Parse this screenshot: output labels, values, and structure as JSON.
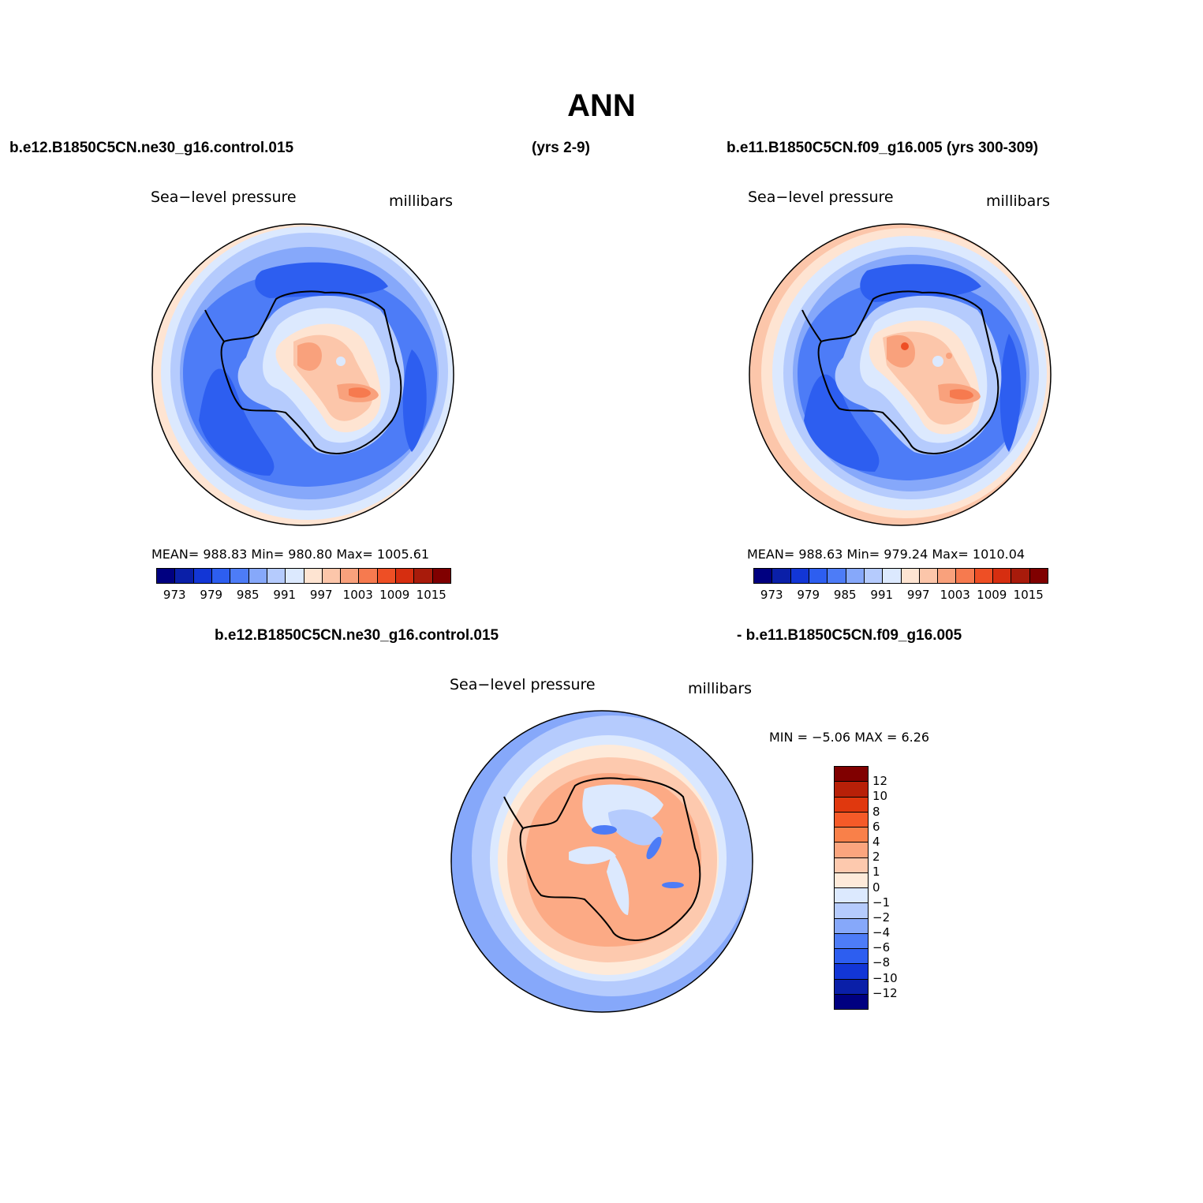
{
  "title": "ANN",
  "top_left_case": "b.e12.B1850C5CN.ne30_g16.control.015",
  "top_left_years": "(yrs 2-9)",
  "top_right_case": "b.e11.B1850C5CN.f09_g16.005 (yrs 300-309)",
  "diff_case_a": "b.e12.B1850C5CN.ne30_g16.control.015",
  "diff_case_b": "- b.e11.B1850C5CN.f09_g16.005",
  "panels": [
    {
      "variable": "Sea−level pressure",
      "units": "millibars",
      "stats": "MEAN=  988.83   Min=  980.80   Max=  1005.61"
    },
    {
      "variable": "Sea−level pressure",
      "units": "millibars",
      "stats": "MEAN=  988.63   Min=  979.24   Max=  1010.04"
    },
    {
      "variable": "Sea−level pressure",
      "units": "millibars",
      "stats": "MIN =   −5.06  MAX =    6.26"
    }
  ],
  "abs_colorbar": {
    "colors": [
      "#000080",
      "#0a1fa8",
      "#1236d6",
      "#2d5ef0",
      "#4d7cf7",
      "#86a8fa",
      "#b5cbfd",
      "#dce9fe",
      "#fee4d2",
      "#fcc6aa",
      "#f9a17c",
      "#f67a4f",
      "#ee4f25",
      "#d62e10",
      "#a81b0b",
      "#800000"
    ],
    "tick_labels": [
      "973",
      "979",
      "985",
      "991",
      "997",
      "1003",
      "1009",
      "1015"
    ]
  },
  "diff_colorbar": {
    "colors": [
      "#800000",
      "#b82008",
      "#e0380e",
      "#f55a28",
      "#f98049",
      "#fba57e",
      "#fdc9ae",
      "#feead9",
      "#dce9fe",
      "#b5cbfd",
      "#86a8fa",
      "#4d7cf7",
      "#2d5ef0",
      "#1236d6",
      "#0a1fa8",
      "#000080"
    ],
    "tick_labels": [
      "12",
      "10",
      "8",
      "6",
      "4",
      "2",
      "1",
      "0",
      "−1",
      "−2",
      "−4",
      "−6",
      "−8",
      "−10",
      "−12"
    ]
  }
}
